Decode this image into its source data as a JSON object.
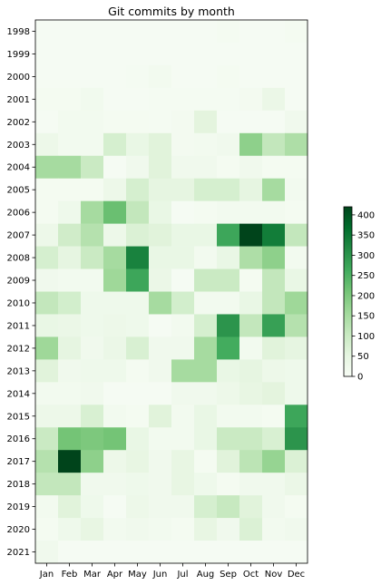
{
  "chart_data": {
    "type": "heatmap",
    "title": "Git commits by month",
    "xlabel": "",
    "ylabel": "",
    "x_categories": [
      "Jan",
      "Feb",
      "Mar",
      "Apr",
      "May",
      "Jun",
      "Jul",
      "Aug",
      "Sep",
      "Oct",
      "Nov",
      "Dec"
    ],
    "y_categories": [
      "1998",
      "1999",
      "2000",
      "2001",
      "2002",
      "2003",
      "2004",
      "2005",
      "2006",
      "2007",
      "2008",
      "2009",
      "2010",
      "2011",
      "2012",
      "2013",
      "2014",
      "2015",
      "2016",
      "2017",
      "2018",
      "2019",
      "2020",
      "2021"
    ],
    "values": [
      [
        5,
        5,
        5,
        5,
        5,
        5,
        5,
        5,
        10,
        5,
        5,
        10
      ],
      [
        5,
        5,
        5,
        5,
        5,
        5,
        5,
        5,
        5,
        5,
        5,
        5
      ],
      [
        5,
        5,
        5,
        5,
        8,
        15,
        5,
        5,
        10,
        5,
        5,
        5
      ],
      [
        10,
        10,
        18,
        5,
        5,
        8,
        8,
        8,
        8,
        12,
        35,
        5
      ],
      [
        5,
        15,
        15,
        10,
        10,
        8,
        12,
        55,
        5,
        5,
        5,
        20
      ],
      [
        30,
        15,
        15,
        80,
        40,
        60,
        12,
        15,
        20,
        180,
        110,
        140
      ],
      [
        150,
        150,
        100,
        5,
        20,
        60,
        20,
        20,
        10,
        20,
        10,
        10
      ],
      [
        10,
        10,
        10,
        30,
        80,
        50,
        50,
        80,
        80,
        50,
        150,
        15
      ],
      [
        10,
        25,
        150,
        220,
        110,
        40,
        5,
        10,
        15,
        15,
        15,
        10
      ],
      [
        30,
        90,
        130,
        30,
        70,
        60,
        40,
        40,
        270,
        420,
        340,
        110
      ],
      [
        80,
        50,
        100,
        150,
        330,
        40,
        40,
        15,
        40,
        140,
        180,
        15
      ],
      [
        20,
        15,
        15,
        160,
        270,
        35,
        5,
        100,
        100,
        10,
        110,
        40
      ],
      [
        110,
        85,
        25,
        25,
        25,
        150,
        85,
        15,
        15,
        40,
        110,
        160
      ],
      [
        40,
        35,
        25,
        30,
        25,
        5,
        15,
        80,
        300,
        110,
        280,
        130
      ],
      [
        160,
        50,
        20,
        35,
        75,
        20,
        20,
        150,
        260,
        15,
        60,
        50
      ],
      [
        60,
        20,
        25,
        25,
        10,
        20,
        150,
        150,
        40,
        50,
        30,
        25
      ],
      [
        15,
        15,
        20,
        5,
        5,
        5,
        20,
        20,
        30,
        45,
        55,
        25
      ],
      [
        30,
        30,
        75,
        15,
        10,
        60,
        15,
        40,
        15,
        15,
        10,
        270
      ],
      [
        100,
        210,
        200,
        210,
        40,
        15,
        15,
        40,
        100,
        100,
        75,
        300
      ],
      [
        130,
        475,
        180,
        30,
        45,
        20,
        45,
        10,
        60,
        120,
        170,
        70
      ],
      [
        110,
        110,
        20,
        20,
        25,
        20,
        45,
        25,
        10,
        20,
        20,
        35
      ],
      [
        15,
        60,
        25,
        5,
        30,
        20,
        20,
        80,
        105,
        60,
        20,
        10
      ],
      [
        10,
        25,
        45,
        15,
        20,
        15,
        10,
        45,
        20,
        70,
        15,
        20
      ],
      [
        20,
        5,
        5,
        5,
        5,
        5,
        5,
        5,
        5,
        5,
        5,
        5
      ]
    ],
    "colorbar": {
      "min": 0,
      "max": 420,
      "ticks": [
        0,
        50,
        100,
        150,
        200,
        250,
        300,
        350,
        400
      ],
      "colormap": [
        "#f7fcf5",
        "#e5f5e0",
        "#c7e9c0",
        "#a1d99b",
        "#74c476",
        "#41ab5d",
        "#238b45",
        "#006d2c",
        "#00441b"
      ]
    }
  }
}
